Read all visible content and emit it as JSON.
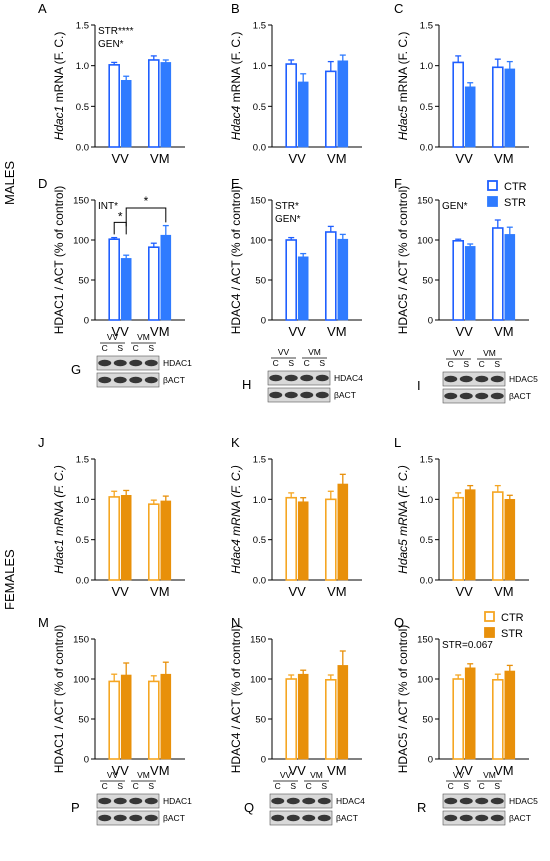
{
  "section_labels": {
    "males": "MALES",
    "females": "FEMALES"
  },
  "legend_males": {
    "items": [
      "CTR",
      "STR"
    ]
  },
  "legend_females": {
    "items": [
      "CTR",
      "STR"
    ]
  },
  "colors": {
    "male_ctr": "#1f5fff",
    "male_str": "#2f7bff",
    "female_ctr": "#f5a623",
    "female_str": "#e8900a",
    "axis": "#000000"
  },
  "chart_data": [
    {
      "panel": "A",
      "type": "bar",
      "ylabel": "Hdac1 mRNA (F. C.)",
      "ylabel_italic_part": "Hdac1",
      "categories": [
        "VV",
        "VM"
      ],
      "ylim": [
        0,
        1.5
      ],
      "yticks": [
        "0.0",
        "0.5",
        "1.0",
        "1.5"
      ],
      "series": [
        {
          "name": "CTR",
          "values": [
            1.01,
            1.07
          ],
          "errors": [
            0.03,
            0.05
          ]
        },
        {
          "name": "STR",
          "values": [
            0.82,
            1.04
          ],
          "errors": [
            0.05,
            0.03
          ]
        }
      ],
      "annotations": [
        "STR****",
        "GEN*"
      ],
      "group": "males"
    },
    {
      "panel": "B",
      "type": "bar",
      "ylabel": "Hdac4 mRNA (F. C.)",
      "ylabel_italic_part": "Hdac4",
      "categories": [
        "VV",
        "VM"
      ],
      "ylim": [
        0,
        1.5
      ],
      "yticks": [
        "0.0",
        "0.5",
        "1.0",
        "1.5"
      ],
      "series": [
        {
          "name": "CTR",
          "values": [
            1.02,
            0.93
          ],
          "errors": [
            0.05,
            0.12
          ]
        },
        {
          "name": "STR",
          "values": [
            0.8,
            1.06
          ],
          "errors": [
            0.1,
            0.07
          ]
        }
      ],
      "annotations": [],
      "group": "males"
    },
    {
      "panel": "C",
      "type": "bar",
      "ylabel": "Hdac5 mRNA (F. C.)",
      "ylabel_italic_part": "Hdac5",
      "categories": [
        "VV",
        "VM"
      ],
      "ylim": [
        0,
        1.5
      ],
      "yticks": [
        "0.0",
        "0.5",
        "1.0",
        "1.5"
      ],
      "series": [
        {
          "name": "CTR",
          "values": [
            1.04,
            0.98
          ],
          "errors": [
            0.08,
            0.1
          ]
        },
        {
          "name": "STR",
          "values": [
            0.74,
            0.96
          ],
          "errors": [
            0.05,
            0.09
          ]
        }
      ],
      "annotations": [],
      "group": "males"
    },
    {
      "panel": "D",
      "type": "bar",
      "ylabel": "HDAC1 / ACT  (% of control)",
      "categories": [
        "VV",
        "VM"
      ],
      "ylim": [
        0,
        150
      ],
      "yticks": [
        "0",
        "50",
        "100",
        "150"
      ],
      "series": [
        {
          "name": "CTR",
          "values": [
            101,
            91
          ],
          "errors": [
            2,
            5
          ]
        },
        {
          "name": "STR",
          "values": [
            77,
            106
          ],
          "errors": [
            4,
            12
          ]
        }
      ],
      "annotations": [
        "INT*"
      ],
      "sig_bars": [
        "*",
        "*"
      ],
      "group": "males"
    },
    {
      "panel": "E",
      "type": "bar",
      "ylabel": "HDAC4 / ACT  (% of control)",
      "categories": [
        "VV",
        "VM"
      ],
      "ylim": [
        0,
        150
      ],
      "yticks": [
        "0",
        "50",
        "100",
        "150"
      ],
      "series": [
        {
          "name": "CTR",
          "values": [
            100,
            110
          ],
          "errors": [
            3,
            7
          ]
        },
        {
          "name": "STR",
          "values": [
            79,
            101
          ],
          "errors": [
            4,
            6
          ]
        }
      ],
      "annotations": [
        "STR*",
        "GEN*"
      ],
      "group": "males"
    },
    {
      "panel": "F",
      "type": "bar",
      "ylabel": "HDAC5 / ACT  (% of control)",
      "categories": [
        "VV",
        "VM"
      ],
      "ylim": [
        0,
        150
      ],
      "yticks": [
        "0",
        "50",
        "100",
        "150"
      ],
      "series": [
        {
          "name": "CTR",
          "values": [
            99,
            115
          ],
          "errors": [
            2,
            10
          ]
        },
        {
          "name": "STR",
          "values": [
            92,
            107
          ],
          "errors": [
            3,
            9
          ]
        }
      ],
      "annotations": [
        "GEN*"
      ],
      "group": "males"
    },
    {
      "panel": "J",
      "type": "bar",
      "ylabel": "Hdac1 mRNA (F. C.)",
      "ylabel_italic_part": "Hdac1 mRNA (F. C.)",
      "categories": [
        "VV",
        "VM"
      ],
      "ylim": [
        0,
        1.5
      ],
      "yticks": [
        "0.0",
        "0.5",
        "1.0",
        "1.5"
      ],
      "series": [
        {
          "name": "CTR",
          "values": [
            1.03,
            0.94
          ],
          "errors": [
            0.07,
            0.05
          ]
        },
        {
          "name": "STR",
          "values": [
            1.05,
            0.98
          ],
          "errors": [
            0.06,
            0.06
          ]
        }
      ],
      "annotations": [],
      "group": "females"
    },
    {
      "panel": "K",
      "type": "bar",
      "ylabel": "Hdac4 mRNA (F. C.)",
      "ylabel_italic_part": "Hdac4 mRNA (F. C.)",
      "categories": [
        "VV",
        "VM"
      ],
      "ylim": [
        0,
        1.5
      ],
      "yticks": [
        "0.0",
        "0.5",
        "1.0",
        "1.5"
      ],
      "series": [
        {
          "name": "CTR",
          "values": [
            1.02,
            1.0
          ],
          "errors": [
            0.06,
            0.1
          ]
        },
        {
          "name": "STR",
          "values": [
            0.97,
            1.19
          ],
          "errors": [
            0.05,
            0.12
          ]
        }
      ],
      "annotations": [],
      "group": "females"
    },
    {
      "panel": "L",
      "type": "bar",
      "ylabel": "Hdac5 mRNA (F. C.)",
      "ylabel_italic_part": "Hdac5 mRNA (F. C.)",
      "categories": [
        "VV",
        "VM"
      ],
      "ylim": [
        0,
        1.5
      ],
      "yticks": [
        "0.0",
        "0.5",
        "1.0",
        "1.5"
      ],
      "series": [
        {
          "name": "CTR",
          "values": [
            1.02,
            1.09
          ],
          "errors": [
            0.06,
            0.08
          ]
        },
        {
          "name": "STR",
          "values": [
            1.12,
            1.0
          ],
          "errors": [
            0.05,
            0.05
          ]
        }
      ],
      "annotations": [],
      "group": "females"
    },
    {
      "panel": "M",
      "type": "bar",
      "ylabel": "HDAC1 / ACT  (% of control)",
      "categories": [
        "VV",
        "VM"
      ],
      "ylim": [
        0,
        150
      ],
      "yticks": [
        "0",
        "50",
        "100",
        "150"
      ],
      "series": [
        {
          "name": "CTR",
          "values": [
            97,
            97
          ],
          "errors": [
            9,
            7
          ]
        },
        {
          "name": "STR",
          "values": [
            105,
            106
          ],
          "errors": [
            15,
            15
          ]
        }
      ],
      "annotations": [],
      "group": "females"
    },
    {
      "panel": "N",
      "type": "bar",
      "ylabel": "HDAC4 / ACT  (% of control)",
      "categories": [
        "VV",
        "VM"
      ],
      "ylim": [
        0,
        150
      ],
      "yticks": [
        "0",
        "50",
        "100",
        "150"
      ],
      "series": [
        {
          "name": "CTR",
          "values": [
            100,
            99
          ],
          "errors": [
            5,
            6
          ]
        },
        {
          "name": "STR",
          "values": [
            106,
            117
          ],
          "errors": [
            5,
            18
          ]
        }
      ],
      "annotations": [],
      "group": "females"
    },
    {
      "panel": "O",
      "type": "bar",
      "ylabel": "HDAC5 / ACT  (% of control)",
      "categories": [
        "VV",
        "VM"
      ],
      "ylim": [
        0,
        150
      ],
      "yticks": [
        "0",
        "50",
        "100",
        "150"
      ],
      "series": [
        {
          "name": "CTR",
          "values": [
            100,
            99
          ],
          "errors": [
            5,
            7
          ]
        },
        {
          "name": "STR",
          "values": [
            114,
            110
          ],
          "errors": [
            5,
            7
          ]
        }
      ],
      "annotations": [
        "STR=0.067"
      ],
      "group": "females"
    }
  ],
  "blots": [
    {
      "panel": "G",
      "groups": [
        "VV",
        "VM"
      ],
      "lanes": [
        "C",
        "S",
        "C",
        "S"
      ],
      "bands": [
        "HDAC1",
        "βACT"
      ]
    },
    {
      "panel": "H",
      "groups": [
        "VV",
        "VM"
      ],
      "lanes": [
        "C",
        "S",
        "C",
        "S"
      ],
      "bands": [
        "HDAC4",
        "βACT"
      ]
    },
    {
      "panel": "I",
      "groups": [
        "VV",
        "VM"
      ],
      "lanes": [
        "C",
        "S",
        "C",
        "S"
      ],
      "bands": [
        "HDAC5",
        "βACT"
      ]
    },
    {
      "panel": "P",
      "groups": [
        "VV",
        "VM"
      ],
      "lanes": [
        "C",
        "S",
        "C",
        "S"
      ],
      "bands": [
        "HDAC1",
        "βACT"
      ]
    },
    {
      "panel": "Q",
      "groups": [
        "VV",
        "VM"
      ],
      "lanes": [
        "C",
        "S",
        "C",
        "S"
      ],
      "bands": [
        "HDAC4",
        "βACT"
      ]
    },
    {
      "panel": "R",
      "groups": [
        "VV",
        "VM"
      ],
      "lanes": [
        "C",
        "S",
        "C",
        "S"
      ],
      "bands": [
        "HDAC5",
        "βACT"
      ]
    }
  ]
}
